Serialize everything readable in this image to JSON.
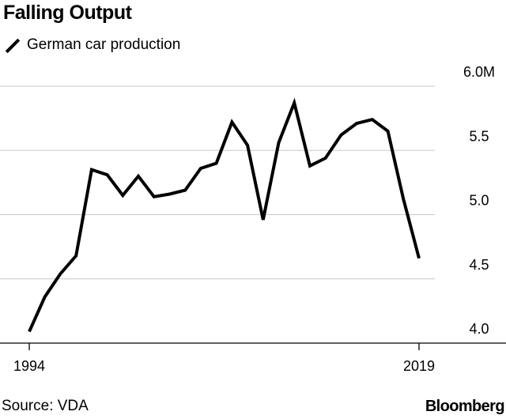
{
  "chart_data": {
    "type": "line",
    "title": "Falling Output",
    "legend": [
      "German car production"
    ],
    "legend_position": "top-left",
    "source": "Source: VDA",
    "brand": "Bloomberg",
    "x_tick_labels": [
      "1994",
      "2019"
    ],
    "y_tick_labels": [
      "4.0",
      "4.5",
      "5.0",
      "5.5",
      "6.0M"
    ],
    "y_ticks": [
      4.0,
      4.5,
      5.0,
      5.5,
      6.0
    ],
    "xlim": [
      1994,
      2019
    ],
    "ylim": [
      4.0,
      6.0
    ],
    "grid": true,
    "series": [
      {
        "name": "German car production",
        "x": [
          1994,
          1995,
          1996,
          1997,
          1998,
          1999,
          2000,
          2001,
          2002,
          2003,
          2004,
          2005,
          2006,
          2007,
          2008,
          2009,
          2010,
          2011,
          2012,
          2013,
          2014,
          2015,
          2016,
          2017,
          2018,
          2019
        ],
        "values": [
          4.09,
          4.36,
          4.54,
          4.68,
          5.35,
          5.31,
          5.15,
          5.3,
          5.14,
          5.16,
          5.19,
          5.36,
          5.4,
          5.72,
          5.54,
          4.96,
          5.56,
          5.87,
          5.38,
          5.44,
          5.62,
          5.71,
          5.74,
          5.65,
          5.12,
          4.66
        ]
      }
    ]
  }
}
